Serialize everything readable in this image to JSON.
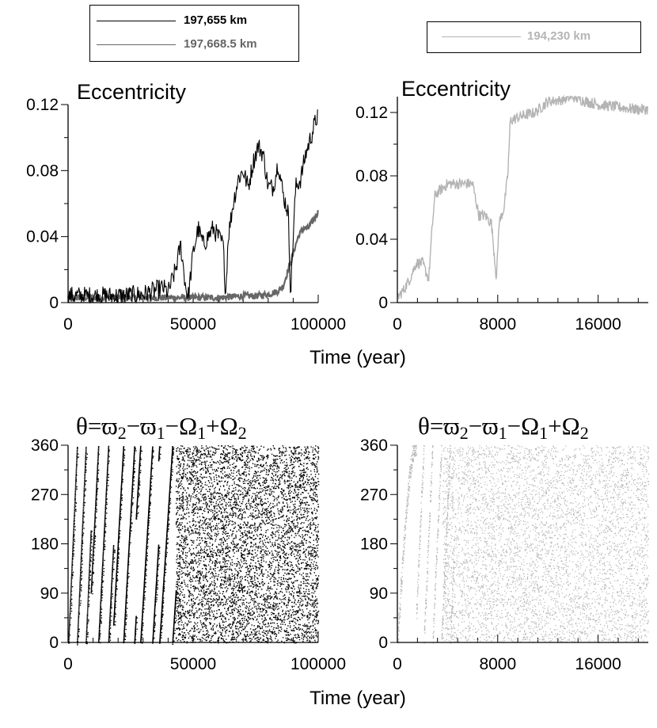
{
  "legend_left": {
    "entries": [
      {
        "label": "197,655 km",
        "color": "#000000"
      },
      {
        "label": "197,668.5 km",
        "color": "#666666"
      }
    ]
  },
  "legend_right": {
    "entries": [
      {
        "label": "194,230 km",
        "color": "#b4b4b4"
      }
    ]
  },
  "xlabel": "Time (year)",
  "chart_data": [
    {
      "type": "line",
      "title": "Eccentricity",
      "xlim": [
        0,
        100000
      ],
      "ylim": [
        0,
        0.12
      ],
      "xticks": [
        0,
        50000,
        100000
      ],
      "xtick_labels": [
        "0",
        "50000",
        "100000"
      ],
      "yticks": [
        0,
        0.04,
        0.08,
        0.12
      ],
      "ytick_labels": [
        "0",
        "0.04",
        "0.08",
        "0.12"
      ],
      "series": [
        {
          "name": "197,655 km",
          "color": "#000000",
          "x": [
            0,
            10000,
            20000,
            30000,
            34000,
            38000,
            40000,
            43000,
            45000,
            47000,
            48000,
            50000,
            52000,
            54000,
            56000,
            58000,
            60000,
            62000,
            63000,
            64000,
            66000,
            68000,
            70000,
            72000,
            74000,
            76000,
            78000,
            80000,
            82000,
            84000,
            86000,
            88000,
            89000,
            90000,
            91000,
            93000,
            95000,
            97000,
            99000,
            100000
          ],
          "y": [
            0.004,
            0.004,
            0.004,
            0.005,
            0.007,
            0.009,
            0.006,
            0.02,
            0.035,
            0.01,
            0.003,
            0.03,
            0.045,
            0.035,
            0.04,
            0.045,
            0.04,
            0.035,
            0.005,
            0.04,
            0.06,
            0.075,
            0.08,
            0.07,
            0.085,
            0.095,
            0.09,
            0.07,
            0.07,
            0.085,
            0.065,
            0.055,
            0.005,
            0.04,
            0.07,
            0.075,
            0.09,
            0.1,
            0.11,
            0.115
          ]
        },
        {
          "name": "197,668.5 km",
          "color": "#666666",
          "x": [
            0,
            20000,
            40000,
            50000,
            60000,
            70000,
            75000,
            80000,
            84000,
            86000,
            88000,
            90000,
            92000,
            94000,
            96000,
            98000,
            100000
          ],
          "y": [
            0.003,
            0.003,
            0.003,
            0.003,
            0.003,
            0.004,
            0.004,
            0.005,
            0.007,
            0.01,
            0.02,
            0.03,
            0.04,
            0.045,
            0.045,
            0.05,
            0.055
          ]
        }
      ]
    },
    {
      "type": "line",
      "title": "Eccentricity",
      "xlim": [
        0,
        20000
      ],
      "ylim": [
        0,
        0.13
      ],
      "xticks": [
        0,
        8000,
        16000
      ],
      "xtick_labels": [
        "0",
        "8000",
        "16000"
      ],
      "yticks": [
        0,
        0.04,
        0.08,
        0.12
      ],
      "ytick_labels": [
        "0",
        "0.04",
        "0.08",
        "0.12"
      ],
      "series": [
        {
          "name": "194,230 km",
          "color": "#b4b4b4",
          "x": [
            0,
            500,
            1000,
            1500,
            2000,
            2500,
            2800,
            3000,
            4000,
            5000,
            6000,
            6500,
            7000,
            7500,
            7900,
            8100,
            8500,
            8800,
            9000,
            10000,
            11000,
            12000,
            13000,
            14000,
            15000,
            16000,
            17000,
            18000,
            19000,
            20000
          ],
          "y": [
            0.003,
            0.008,
            0.015,
            0.025,
            0.025,
            0.015,
            0.05,
            0.068,
            0.075,
            0.075,
            0.075,
            0.055,
            0.055,
            0.05,
            0.015,
            0.05,
            0.06,
            0.08,
            0.115,
            0.118,
            0.12,
            0.127,
            0.128,
            0.13,
            0.127,
            0.125,
            0.124,
            0.123,
            0.122,
            0.122
          ]
        }
      ]
    },
    {
      "type": "scatter",
      "title": "θ=ϖ₂−ϖ₁−Ω₁+Ω₂",
      "xlim": [
        0,
        100000
      ],
      "ylim": [
        0,
        360
      ],
      "xticks": [
        0,
        50000,
        100000
      ],
      "xtick_labels": [
        "0",
        "50000",
        "100000"
      ],
      "yticks": [
        0,
        90,
        180,
        270,
        360
      ],
      "ytick_labels": [
        "0",
        "90",
        "180",
        "270",
        "360"
      ],
      "color": "#000000",
      "circulation_periods": [
        3500,
        4000,
        4400,
        4800,
        5200
      ],
      "circulation_until": 43000
    },
    {
      "type": "scatter",
      "title": "θ=ϖ₂−ϖ₁−Ω₁+Ω₂",
      "xlim": [
        0,
        20000
      ],
      "ylim": [
        0,
        360
      ],
      "xticks": [
        0,
        8000,
        16000
      ],
      "xtick_labels": [
        "0",
        "8000",
        "16000"
      ],
      "yticks": [
        0,
        90,
        180,
        270,
        360
      ],
      "ytick_labels": [
        "0",
        "90",
        "180",
        "270",
        "360"
      ],
      "color": "#b4b4b4",
      "circulation_until": 4500
    }
  ]
}
